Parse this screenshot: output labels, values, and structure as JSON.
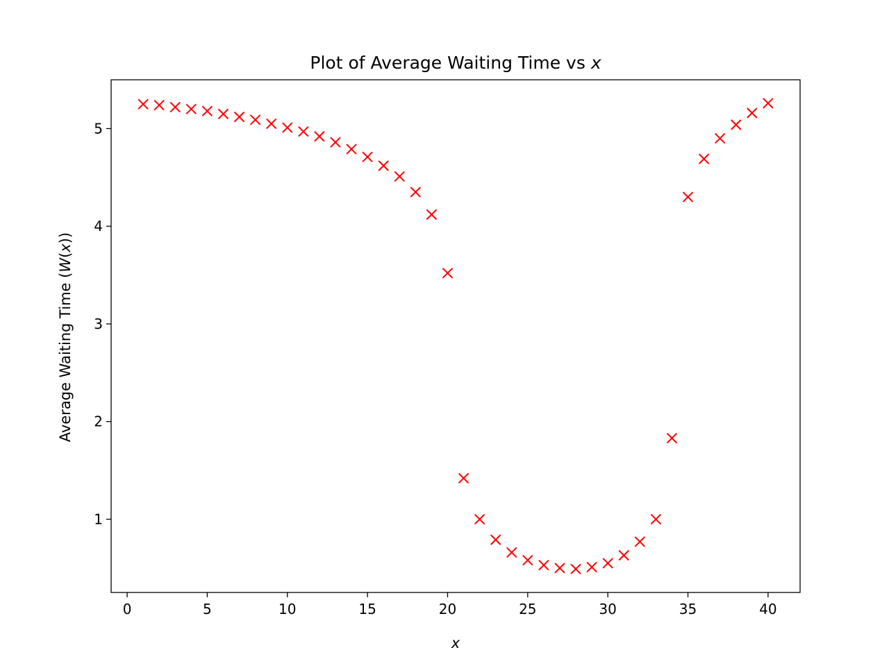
{
  "chart_data": {
    "type": "scatter",
    "title": "Plot of Average Waiting Time vs ",
    "title_var": "x",
    "xlabel": "x",
    "ylabel_parts": [
      "Average Waiting Time (",
      "W",
      "(",
      "x",
      "))"
    ],
    "xlim": [
      -1,
      42
    ],
    "ylim": [
      0.25,
      5.5
    ],
    "xticks": [
      0,
      5,
      10,
      15,
      20,
      25,
      30,
      35,
      40
    ],
    "yticks": [
      1,
      2,
      3,
      4,
      5
    ],
    "grid": false,
    "legend": "none",
    "marker": "x",
    "marker_color": "#ff0000",
    "series": [
      {
        "x": [
          1,
          2,
          3,
          4,
          5,
          6,
          7,
          8,
          9,
          10,
          11,
          12,
          13,
          14,
          15,
          16,
          17,
          18,
          19,
          20,
          21,
          22,
          23,
          24,
          25,
          26,
          27,
          28,
          29,
          30,
          31,
          32,
          33,
          34,
          35,
          36,
          37,
          38,
          39,
          40
        ],
        "y": [
          5.25,
          5.24,
          5.22,
          5.2,
          5.18,
          5.15,
          5.12,
          5.09,
          5.05,
          5.01,
          4.97,
          4.92,
          4.86,
          4.79,
          4.71,
          4.62,
          4.51,
          4.35,
          4.12,
          3.52,
          1.42,
          1.0,
          0.79,
          0.66,
          0.58,
          0.53,
          0.5,
          0.49,
          0.51,
          0.55,
          0.63,
          0.77,
          1.0,
          1.83,
          4.3,
          4.69,
          4.9,
          5.04,
          5.16,
          5.26
        ]
      }
    ]
  }
}
